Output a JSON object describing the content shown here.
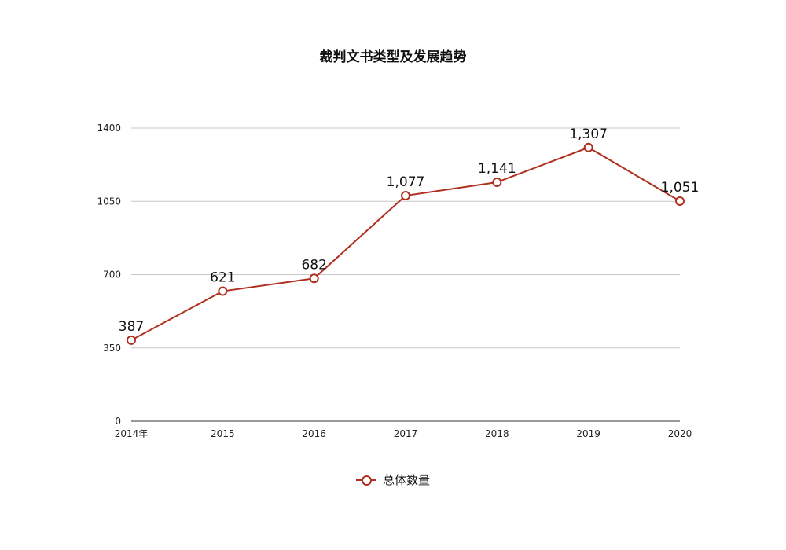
{
  "chart_data": {
    "type": "line",
    "title": "裁判文书类型及发展趋势",
    "categories": [
      "2014年",
      "2015",
      "2016",
      "2017",
      "2018",
      "2019",
      "2020"
    ],
    "series": [
      {
        "name": "总体数量",
        "values": [
          387,
          621,
          682,
          1077,
          1141,
          1307,
          1051
        ],
        "data_labels": [
          "387",
          "621",
          "682",
          "1,077",
          "1,141",
          "1,307",
          "1,051"
        ],
        "color": "#b03020"
      }
    ],
    "y_ticks": [
      "0",
      "350",
      "700",
      "1050",
      "1400"
    ],
    "ylim": [
      0,
      1400
    ],
    "grid": true,
    "legend_position": "bottom"
  }
}
